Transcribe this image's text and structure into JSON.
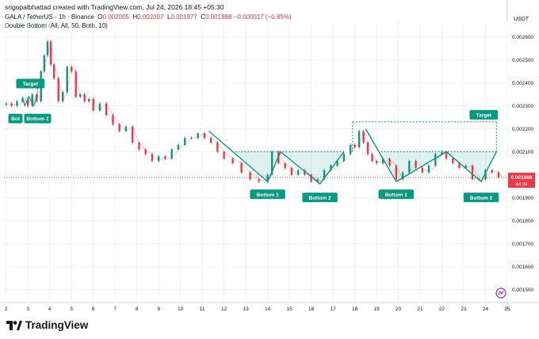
{
  "header": {
    "creator_line": "srigopalbhattad created with TradingView.com, Jul 24, 2026 18:45 +05:30",
    "symbol": "GALA / TetherUS · 1h · Binance",
    "ohlc": {
      "o_label": "O",
      "o": "0.002005",
      "h_label": "H",
      "h": "0.002007",
      "l_label": "L",
      "l": "0.001977",
      "c_label": "C",
      "c": "0.001988",
      "change": "−0.000017 (−0.85%)"
    },
    "indicator": "Double Bottom (All, All, 50, Both, 10)"
  },
  "footer": {
    "brand": "TradingView"
  },
  "chart_data": {
    "type": "line",
    "currency": "USDT",
    "x": [
      2.0,
      2.25,
      2.5,
      2.75,
      3.0,
      3.2,
      3.4,
      3.6,
      3.75,
      3.9,
      4.05,
      4.2,
      4.4,
      4.6,
      4.8,
      5.0,
      5.2,
      5.4,
      5.6,
      5.8,
      6.0,
      6.3,
      6.6,
      6.9,
      7.2,
      7.5,
      7.8,
      8.1,
      8.4,
      8.7,
      9.0,
      9.3,
      9.6,
      9.9,
      10.2,
      10.5,
      10.8,
      11.1,
      11.4,
      11.7,
      12.0,
      12.4,
      12.8,
      13.2,
      13.6,
      14.0,
      14.2,
      14.5,
      14.8,
      15.1,
      15.4,
      15.7,
      16.0,
      16.3,
      16.6,
      16.9,
      17.2,
      17.5,
      17.8,
      18.0,
      18.2,
      18.4,
      18.6,
      18.8,
      19.0,
      19.3,
      19.6,
      19.9,
      20.2,
      20.5,
      20.8,
      21.1,
      21.4,
      21.7,
      22.0,
      22.2,
      22.5,
      22.8,
      23.1,
      23.4,
      23.7,
      24.0,
      24.3,
      24.6,
      24.8
    ],
    "series": [
      {
        "values": [
          0.002305,
          0.00231,
          0.0023,
          0.00232,
          0.00233,
          0.0023,
          0.00235,
          0.00232,
          0.00245,
          0.00252,
          0.00258,
          0.00248,
          0.00242,
          0.00232,
          0.00236,
          0.00247,
          0.00245,
          0.00234,
          0.00235,
          0.00232,
          0.00233,
          0.00228,
          0.00231,
          0.00226,
          0.00222,
          0.00219,
          0.00221,
          0.00214,
          0.00211,
          0.00209,
          0.00206,
          0.00208,
          0.00207,
          0.00211,
          0.00213,
          0.00216,
          0.00216,
          0.00218,
          0.00216,
          0.00214,
          0.0021,
          0.00207,
          0.00205,
          0.00201,
          0.00198,
          0.00197,
          0.002,
          0.0021,
          0.00205,
          0.00203,
          0.002,
          0.00202,
          0.002,
          0.00197,
          0.00198,
          0.00202,
          0.00204,
          0.00206,
          0.00209,
          0.00213,
          0.00212,
          0.00219,
          0.00214,
          0.00209,
          0.00206,
          0.00205,
          0.00207,
          0.00204,
          0.00198,
          0.00201,
          0.00206,
          0.00203,
          0.00201,
          0.00204,
          0.00209,
          0.0021,
          0.00207,
          0.00205,
          0.00203,
          0.00204,
          0.00198,
          0.00198,
          0.00202,
          0.00201,
          0.001988
        ]
      }
    ],
    "x_ticks": [
      "2",
      "3",
      "4",
      "5",
      "6",
      "7",
      "8",
      "9",
      "10",
      "11",
      "12",
      "13",
      "14",
      "15",
      "16",
      "17",
      "18",
      "19",
      "20",
      "21",
      "22",
      "23",
      "24",
      "25"
    ],
    "y_ticks": [
      "0.001500",
      "0.001600",
      "0.001700",
      "0.001800",
      "0.001900",
      "0.002000",
      "0.002100",
      "0.002200",
      "0.002300",
      "0.002400",
      "0.002500",
      "0.002600"
    ],
    "ylim": [
      0.00145,
      0.00263
    ],
    "xlim": [
      1.9,
      25.0
    ],
    "grid": true,
    "last_price": "0.001988",
    "countdown": "44:34",
    "patterns": [
      {
        "neckline": 0.00234,
        "target": 0.00239,
        "target_label": "Target",
        "bottom1": {
          "x": 2.85,
          "y": 0.0023
        },
        "bottom2": {
          "x": 3.25,
          "y": 0.0023
        },
        "bottom_labels": [
          "Bot",
          "Bottom 2"
        ],
        "line_x": [
          2.75,
          2.85,
          3.05,
          3.25,
          3.45
        ]
      },
      {
        "line": [
          [
            11.3,
            0.00219
          ],
          [
            14.0,
            0.00197
          ],
          [
            14.6,
            0.0021
          ],
          [
            16.4,
            0.00196
          ],
          [
            17.5,
            0.0021
          ]
        ],
        "zone": [
          0.00197,
          0.0021
        ],
        "zone_x": [
          12.5,
          17.5
        ],
        "bottom_labels": [
          "Bottom 1",
          "Bottom 2"
        ],
        "bottom1_x": 14.0,
        "bottom2_x": 16.4
      },
      {
        "line": [
          [
            18.5,
            0.0022
          ],
          [
            19.9,
            0.00197
          ],
          [
            22.2,
            0.0021
          ],
          [
            23.8,
            0.00197
          ],
          [
            24.5,
            0.0021
          ]
        ],
        "zone": [
          0.00197,
          0.0021
        ],
        "zone_x": [
          19.2,
          24.5
        ],
        "bottom_labels": [
          "Bottom 1",
          "Bottom 2"
        ],
        "bottom1_x": 19.9,
        "bottom2_x": 23.8,
        "target": 0.00223,
        "target_label": "Target",
        "target_x": [
          17.9,
          24.5
        ]
      }
    ]
  }
}
